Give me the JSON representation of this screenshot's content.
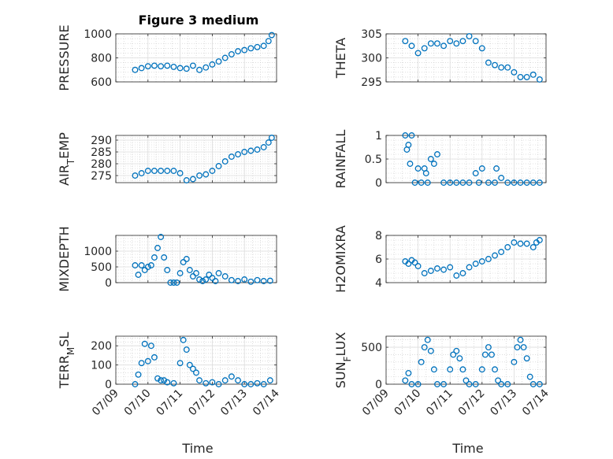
{
  "figure": {
    "title": "Figure 3 medium",
    "xlabel": "Time",
    "x_tick_labels": [
      "07/09",
      "07/10",
      "07/11",
      "07/12",
      "07/13",
      "07/14"
    ]
  },
  "colors": {
    "marker": "#0072BD",
    "axes": "#262626",
    "grid_major": "#dcdcdc",
    "grid_minor": "#c8c8c8"
  },
  "chart_data": [
    {
      "type": "scatter",
      "ylabel": "PRESSURE",
      "xlim": [
        0,
        5
      ],
      "ylim": [
        600,
        1000
      ],
      "yticks": [
        600,
        800,
        1000
      ],
      "x": [
        0.6,
        0.8,
        1.0,
        1.2,
        1.4,
        1.6,
        1.8,
        2.0,
        2.2,
        2.4,
        2.6,
        2.8,
        3.0,
        3.2,
        3.4,
        3.6,
        3.8,
        4.0,
        4.2,
        4.4,
        4.6,
        4.75,
        4.85
      ],
      "y": [
        700,
        715,
        730,
        735,
        730,
        735,
        725,
        715,
        710,
        735,
        700,
        720,
        745,
        770,
        800,
        830,
        855,
        865,
        880,
        890,
        900,
        940,
        990
      ],
      "grid": true,
      "marker": "open-circle"
    },
    {
      "type": "scatter",
      "ylabel": "THETA",
      "xlim": [
        0,
        5
      ],
      "ylim": [
        295,
        305
      ],
      "yticks": [
        295,
        300,
        305
      ],
      "x": [
        0.6,
        0.8,
        1.0,
        1.2,
        1.4,
        1.6,
        1.8,
        2.0,
        2.2,
        2.4,
        2.6,
        2.8,
        3.0,
        3.2,
        3.4,
        3.6,
        3.8,
        4.0,
        4.2,
        4.4,
        4.6,
        4.8
      ],
      "y": [
        303.5,
        302.5,
        301,
        302,
        303,
        303,
        302.5,
        303.5,
        303,
        303.5,
        304.5,
        303.5,
        302,
        299,
        298.5,
        298,
        298,
        297,
        296,
        296,
        296.5,
        295.5
      ],
      "grid": true,
      "marker": "open-circle"
    },
    {
      "type": "scatter",
      "ylabel": "AIR_TEMP",
      "xlim": [
        0,
        5
      ],
      "ylim": [
        272,
        292
      ],
      "yticks": [
        275,
        280,
        285,
        290
      ],
      "x": [
        0.6,
        0.8,
        1.0,
        1.2,
        1.4,
        1.6,
        1.8,
        2.0,
        2.2,
        2.4,
        2.6,
        2.8,
        3.0,
        3.2,
        3.4,
        3.6,
        3.8,
        4.0,
        4.2,
        4.4,
        4.6,
        4.75,
        4.85
      ],
      "y": [
        275,
        276,
        277,
        277,
        277,
        277,
        277,
        276,
        273,
        273.5,
        275,
        275.5,
        277,
        279,
        281,
        283,
        284,
        285,
        285.5,
        286,
        287,
        289,
        291
      ],
      "grid": true,
      "marker": "open-circle"
    },
    {
      "type": "scatter",
      "ylabel": "RAINFALL",
      "xlim": [
        0,
        5
      ],
      "ylim": [
        0,
        1
      ],
      "yticks": [
        0,
        0.5,
        1
      ],
      "x": [
        0.6,
        0.65,
        0.7,
        0.75,
        0.8,
        0.9,
        1.0,
        1.1,
        1.2,
        1.25,
        1.3,
        1.4,
        1.5,
        1.6,
        1.8,
        2.0,
        2.2,
        2.4,
        2.6,
        2.8,
        2.9,
        3.0,
        3.2,
        3.4,
        3.45,
        3.6,
        3.8,
        4.0,
        4.2,
        4.4,
        4.6,
        4.8
      ],
      "y": [
        1,
        0.7,
        0.8,
        0.4,
        1,
        0,
        0.3,
        0,
        0.3,
        0.2,
        0,
        0.5,
        0.4,
        0.6,
        0,
        0,
        0,
        0,
        0,
        0.2,
        0,
        0.3,
        0,
        0,
        0.3,
        0.1,
        0,
        0,
        0,
        0,
        0,
        0
      ],
      "grid": true,
      "marker": "open-circle"
    },
    {
      "type": "scatter",
      "ylabel": "MIXDEPTH",
      "xlim": [
        0,
        5
      ],
      "ylim": [
        0,
        1500
      ],
      "yticks": [
        0,
        500,
        1000
      ],
      "x": [
        0.6,
        0.7,
        0.8,
        0.9,
        1.0,
        1.1,
        1.2,
        1.3,
        1.4,
        1.5,
        1.6,
        1.7,
        1.8,
        1.9,
        2.0,
        2.1,
        2.2,
        2.3,
        2.4,
        2.5,
        2.6,
        2.7,
        2.8,
        2.9,
        3.0,
        3.1,
        3.2,
        3.4,
        3.6,
        3.8,
        4.0,
        4.2,
        4.4,
        4.6,
        4.8
      ],
      "y": [
        550,
        250,
        550,
        400,
        500,
        550,
        800,
        1100,
        1450,
        800,
        400,
        0,
        0,
        0,
        300,
        650,
        750,
        400,
        200,
        300,
        100,
        50,
        100,
        250,
        150,
        50,
        300,
        200,
        80,
        50,
        100,
        30,
        80,
        50,
        60
      ],
      "grid": true,
      "marker": "open-circle"
    },
    {
      "type": "scatter",
      "ylabel": "H2OMIXRA",
      "xlim": [
        0,
        5
      ],
      "ylim": [
        4,
        8
      ],
      "yticks": [
        4,
        6,
        8
      ],
      "x": [
        0.6,
        0.7,
        0.8,
        0.9,
        1.0,
        1.2,
        1.4,
        1.6,
        1.8,
        2.0,
        2.2,
        2.4,
        2.6,
        2.8,
        3.0,
        3.2,
        3.4,
        3.6,
        3.8,
        4.0,
        4.2,
        4.4,
        4.6,
        4.7,
        4.8
      ],
      "y": [
        5.8,
        5.6,
        5.9,
        5.7,
        5.4,
        4.8,
        5.0,
        5.2,
        5.1,
        5.3,
        4.6,
        4.8,
        5.3,
        5.6,
        5.8,
        6.0,
        6.3,
        6.6,
        7.0,
        7.4,
        7.3,
        7.3,
        7.0,
        7.4,
        7.6
      ],
      "grid": true,
      "marker": "open-circle"
    },
    {
      "type": "scatter",
      "ylabel": "TERR_MSL",
      "xlim": [
        0,
        5
      ],
      "ylim": [
        0,
        250
      ],
      "yticks": [
        0,
        100,
        200
      ],
      "x": [
        0.6,
        0.7,
        0.8,
        0.9,
        1.0,
        1.1,
        1.2,
        1.3,
        1.4,
        1.5,
        1.6,
        1.8,
        2.0,
        2.1,
        2.2,
        2.3,
        2.4,
        2.5,
        2.6,
        2.8,
        3.0,
        3.2,
        3.4,
        3.6,
        3.8,
        4.0,
        4.2,
        4.4,
        4.6,
        4.8
      ],
      "y": [
        0,
        50,
        110,
        210,
        120,
        200,
        140,
        30,
        20,
        20,
        10,
        5,
        110,
        230,
        180,
        100,
        80,
        60,
        20,
        5,
        10,
        0,
        20,
        40,
        20,
        0,
        0,
        5,
        0,
        20
      ],
      "grid": true,
      "marker": "open-circle"
    },
    {
      "type": "scatter",
      "ylabel": "SUN_FLUX",
      "xlim": [
        0,
        5
      ],
      "ylim": [
        0,
        650
      ],
      "yticks": [
        0,
        500
      ],
      "x": [
        0.6,
        0.7,
        0.8,
        1.0,
        1.1,
        1.2,
        1.3,
        1.4,
        1.5,
        1.6,
        1.8,
        2.0,
        2.1,
        2.2,
        2.3,
        2.4,
        2.5,
        2.6,
        2.8,
        3.0,
        3.1,
        3.2,
        3.3,
        3.4,
        3.5,
        3.6,
        3.8,
        4.0,
        4.1,
        4.2,
        4.3,
        4.4,
        4.5,
        4.6,
        4.8
      ],
      "y": [
        50,
        150,
        0,
        0,
        300,
        500,
        600,
        450,
        200,
        0,
        0,
        200,
        400,
        450,
        350,
        200,
        50,
        0,
        0,
        200,
        400,
        500,
        400,
        200,
        50,
        0,
        0,
        300,
        500,
        600,
        500,
        350,
        100,
        0,
        0
      ],
      "grid": true,
      "marker": "open-circle"
    }
  ]
}
